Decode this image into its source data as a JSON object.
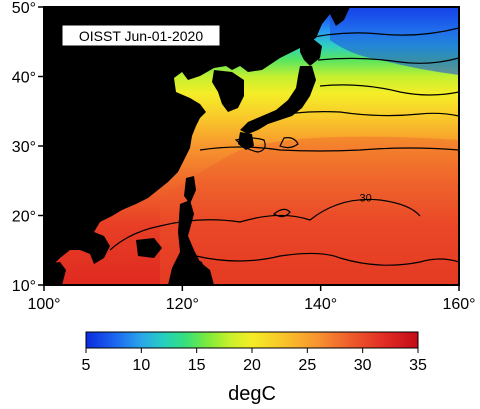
{
  "map": {
    "title": "OISST Jun-01-2020",
    "lon_range": [
      100,
      160
    ],
    "lat_range": [
      10,
      50
    ],
    "lon_ticks": [
      {
        "value": 100,
        "label": "100°"
      },
      {
        "value": 120,
        "label": "120°"
      },
      {
        "value": 140,
        "label": "140°"
      },
      {
        "value": 160,
        "label": "160°"
      }
    ],
    "lat_ticks": [
      {
        "value": 10,
        "label": "10°"
      },
      {
        "value": 20,
        "label": "20°"
      },
      {
        "value": 30,
        "label": "30°"
      },
      {
        "value": 40,
        "label": "40°"
      },
      {
        "value": 50,
        "label": "50°"
      }
    ],
    "contour_labels": [
      {
        "lon": 146.5,
        "lat": 22.0,
        "text": "30"
      }
    ],
    "land_color": "#000000"
  },
  "colorbar": {
    "range": [
      5,
      35
    ],
    "unit": "degC",
    "tick_values": [
      5,
      10,
      15,
      20,
      25,
      30,
      35
    ],
    "tick_labels": [
      "5",
      "10",
      "15",
      "20",
      "25",
      "30",
      "35"
    ],
    "stops": [
      {
        "value": 5,
        "color": "#0b2be0"
      },
      {
        "value": 8,
        "color": "#1e6ff0"
      },
      {
        "value": 10,
        "color": "#2aa6e8"
      },
      {
        "value": 12,
        "color": "#25cfc0"
      },
      {
        "value": 14,
        "color": "#36e07a"
      },
      {
        "value": 16,
        "color": "#7eea3c"
      },
      {
        "value": 18,
        "color": "#c8f02a"
      },
      {
        "value": 20,
        "color": "#f4ee26"
      },
      {
        "value": 23,
        "color": "#f8c22a"
      },
      {
        "value": 26,
        "color": "#f79230"
      },
      {
        "value": 29,
        "color": "#ee5a2c"
      },
      {
        "value": 32,
        "color": "#e12c24"
      },
      {
        "value": 35,
        "color": "#c20b17"
      }
    ]
  }
}
